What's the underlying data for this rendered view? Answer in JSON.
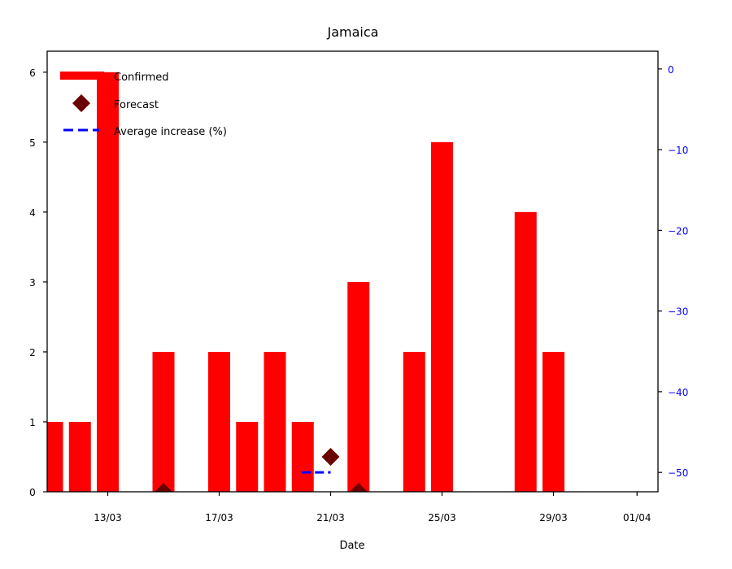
{
  "chart_data": {
    "type": "bar",
    "title": "Jamaica",
    "xlabel": "Date",
    "ylabel": "",
    "ylim": [
      0,
      6.3
    ],
    "y2lim": [
      -52.4,
      2.2
    ],
    "x_dates": [
      "11/03",
      "12/03",
      "13/03",
      "14/03",
      "15/03",
      "16/03",
      "17/03",
      "18/03",
      "19/03",
      "20/03",
      "21/03",
      "22/03",
      "23/03",
      "24/03",
      "25/03",
      "26/03",
      "27/03",
      "28/03",
      "29/03",
      "30/03",
      "31/03",
      "01/04"
    ],
    "xticks": [
      "13/03",
      "17/03",
      "21/03",
      "25/03",
      "29/03",
      "01/04"
    ],
    "yticks_left": [
      0,
      1,
      2,
      3,
      4,
      5,
      6
    ],
    "yticks_right": [
      0,
      -10,
      -20,
      -30,
      -40,
      -50
    ],
    "series": [
      {
        "name": "Confirmed",
        "kind": "bar",
        "color": "#ff0000",
        "points": [
          {
            "date": "11/03",
            "value": 1
          },
          {
            "date": "12/03",
            "value": 1
          },
          {
            "date": "13/03",
            "value": 6
          },
          {
            "date": "15/03",
            "value": 2
          },
          {
            "date": "17/03",
            "value": 2
          },
          {
            "date": "18/03",
            "value": 1
          },
          {
            "date": "19/03",
            "value": 2
          },
          {
            "date": "20/03",
            "value": 1
          },
          {
            "date": "22/03",
            "value": 3
          },
          {
            "date": "24/03",
            "value": 2
          },
          {
            "date": "25/03",
            "value": 5
          },
          {
            "date": "28/03",
            "value": 4
          },
          {
            "date": "29/03",
            "value": 2
          }
        ]
      },
      {
        "name": "Forecast",
        "kind": "scatter",
        "marker": "diamond",
        "color": "#6b0000",
        "points": [
          {
            "date": "15/03",
            "value": 0
          },
          {
            "date": "21/03",
            "value": 0.5
          },
          {
            "date": "22/03",
            "value": 0
          }
        ]
      },
      {
        "name": "Average increase (%)",
        "kind": "line",
        "style": "dashed",
        "color": "#0000ff",
        "axis": "right",
        "points": [
          {
            "date": "20/03",
            "value": -50
          },
          {
            "date": "21/03",
            "value": -50
          }
        ]
      }
    ],
    "legend_position": "top-left",
    "grid": false
  }
}
